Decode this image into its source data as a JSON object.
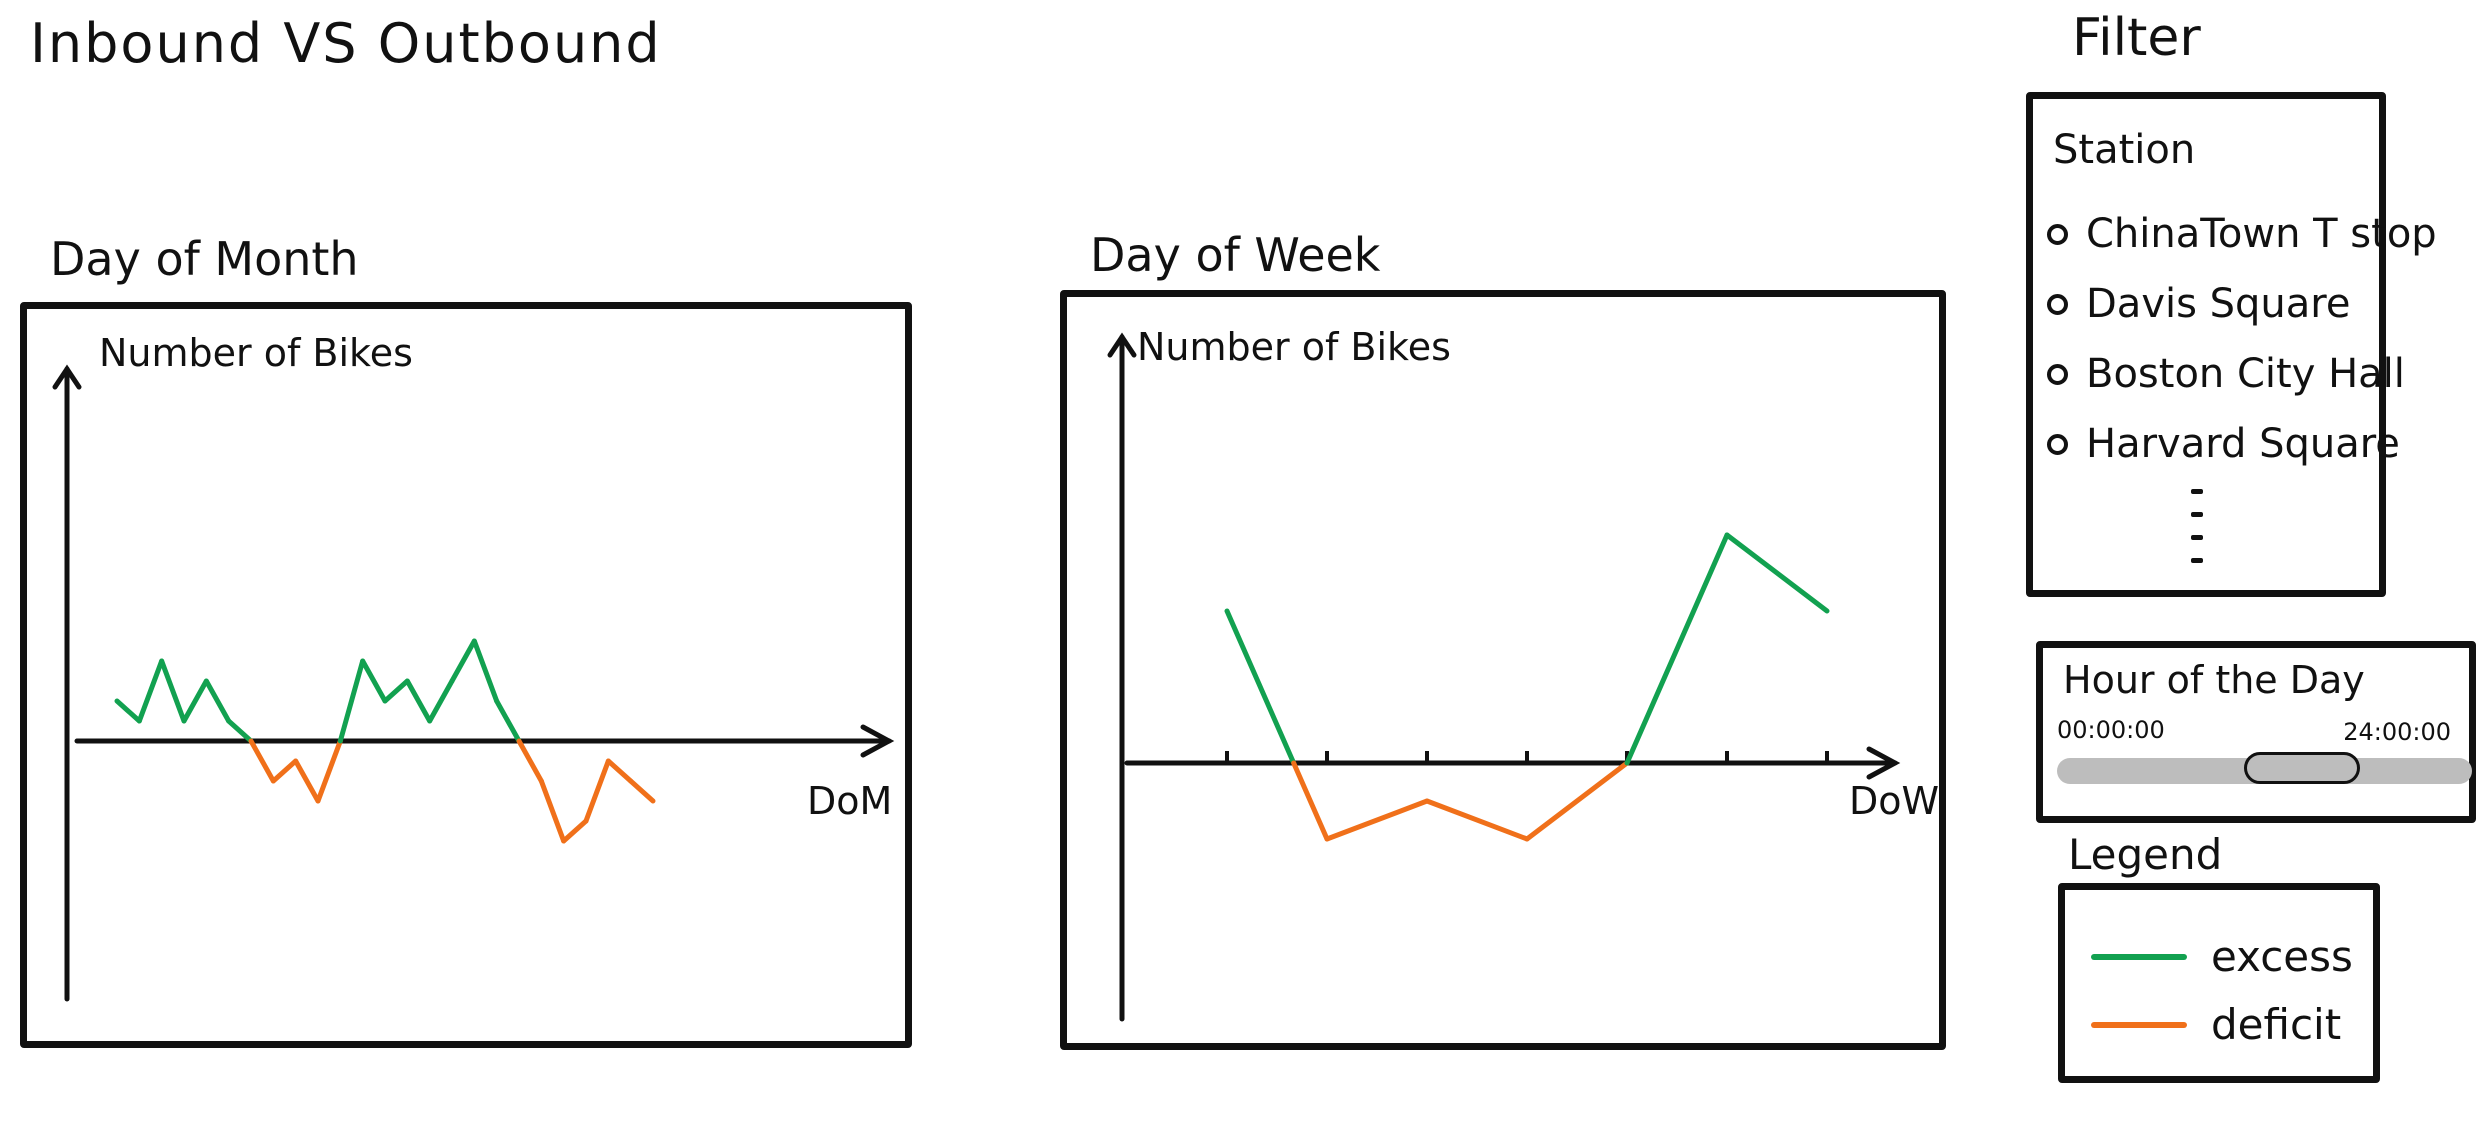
{
  "page_title": "Inbound   VS   Outbound",
  "colors": {
    "excess": "#12a150",
    "deficit": "#f0701a",
    "ink": "#111111",
    "slider": "#bdbdbd"
  },
  "charts": [
    {
      "title": "Day of Month",
      "ylabel": "Number of Bikes",
      "xlabel": "DoM"
    },
    {
      "title": "Day of Week",
      "ylabel": "Number of Bikes",
      "xlabel": "DoW"
    }
  ],
  "chart_data": [
    {
      "type": "line",
      "title": "Day of Month",
      "xlabel": "DoM",
      "ylabel": "Number of Bikes",
      "x": [
        1,
        2,
        3,
        4,
        5,
        6,
        7,
        8,
        9,
        10,
        11,
        12,
        13,
        14,
        15,
        16,
        17,
        18,
        19,
        20,
        21,
        22,
        23,
        24,
        25,
        26,
        27,
        28,
        29,
        30,
        31
      ],
      "values": [
        2,
        1,
        4,
        1,
        3,
        1,
        0,
        -2,
        -1,
        -3,
        0,
        4,
        2,
        3,
        1,
        3,
        5,
        2,
        0,
        -2,
        -5,
        -4,
        -1,
        -2,
        -3,
        null,
        null,
        null,
        null,
        null,
        null
      ],
      "series": [
        {
          "name": "excess",
          "color": "#12a150"
        },
        {
          "name": "deficit",
          "color": "#f0701a"
        }
      ],
      "grid": false
    },
    {
      "type": "line",
      "title": "Day of Week",
      "xlabel": "DoW",
      "ylabel": "Number of Bikes",
      "x": [
        1,
        2,
        3,
        4,
        5,
        6,
        7
      ],
      "values": [
        4,
        -2,
        -1,
        -2,
        0,
        6,
        4
      ],
      "series": [
        {
          "name": "excess",
          "color": "#12a150"
        },
        {
          "name": "deficit",
          "color": "#f0701a"
        }
      ],
      "grid": false
    }
  ],
  "filter": {
    "title": "Filter",
    "station": {
      "label": "Station",
      "options": [
        "ChinaTown T stop",
        "Davis Square",
        "Boston City Hall",
        "Harvard Square"
      ]
    },
    "hour": {
      "label": "Hour of the Day",
      "start": "00:00:00",
      "end": "24:00:00",
      "range_start": 0.45,
      "range_end": 0.73
    }
  },
  "legend": {
    "title": "Legend",
    "items": [
      {
        "label": "excess",
        "color": "#12a150"
      },
      {
        "label": "deficit",
        "color": "#f0701a"
      }
    ]
  }
}
